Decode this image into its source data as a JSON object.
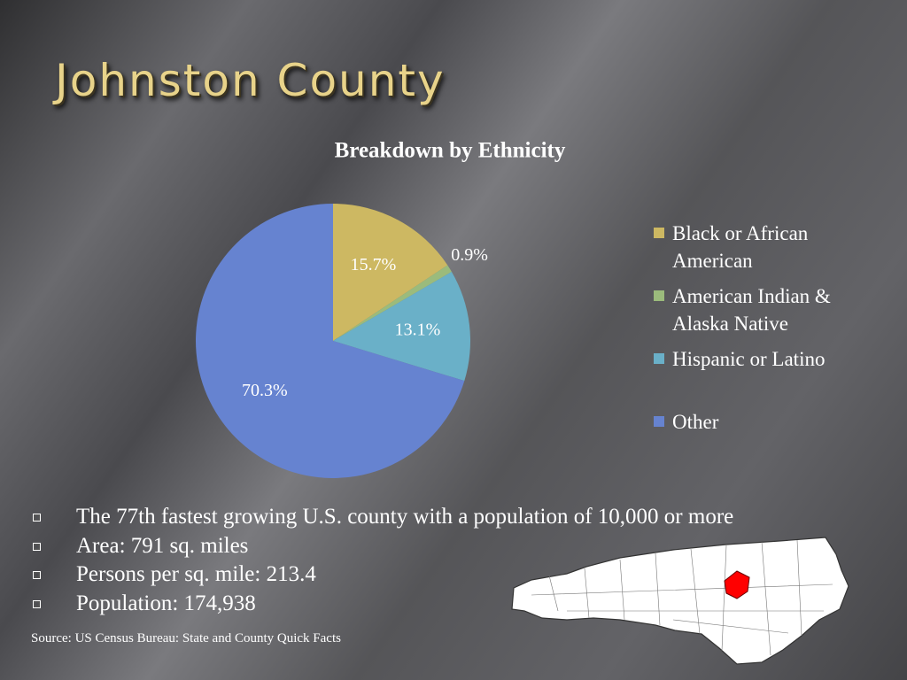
{
  "title": "Johnston County",
  "chart_data": {
    "type": "pie",
    "title": "Breakdown by Ethnicity",
    "categories": [
      "Black or African American",
      "American Indian & Alaska Native",
      "Hispanic or Latino",
      "Other"
    ],
    "values": [
      15.7,
      0.9,
      13.1,
      70.3
    ],
    "value_labels": [
      "15.7%",
      "0.9%",
      "13.1%",
      "70.3%"
    ],
    "colors": [
      "#cdb862",
      "#9bbb7c",
      "#6ab0c8",
      "#6683d0"
    ],
    "legend": "right"
  },
  "bullets": [
    "The 77th fastest growing U.S. county with a population of 10,000 or more",
    "Area: 791 sq. miles",
    "Persons per sq. mile:  213.4",
    "Population: 174,938"
  ],
  "source": "Source:  US Census Bureau:  State and County Quick Facts"
}
